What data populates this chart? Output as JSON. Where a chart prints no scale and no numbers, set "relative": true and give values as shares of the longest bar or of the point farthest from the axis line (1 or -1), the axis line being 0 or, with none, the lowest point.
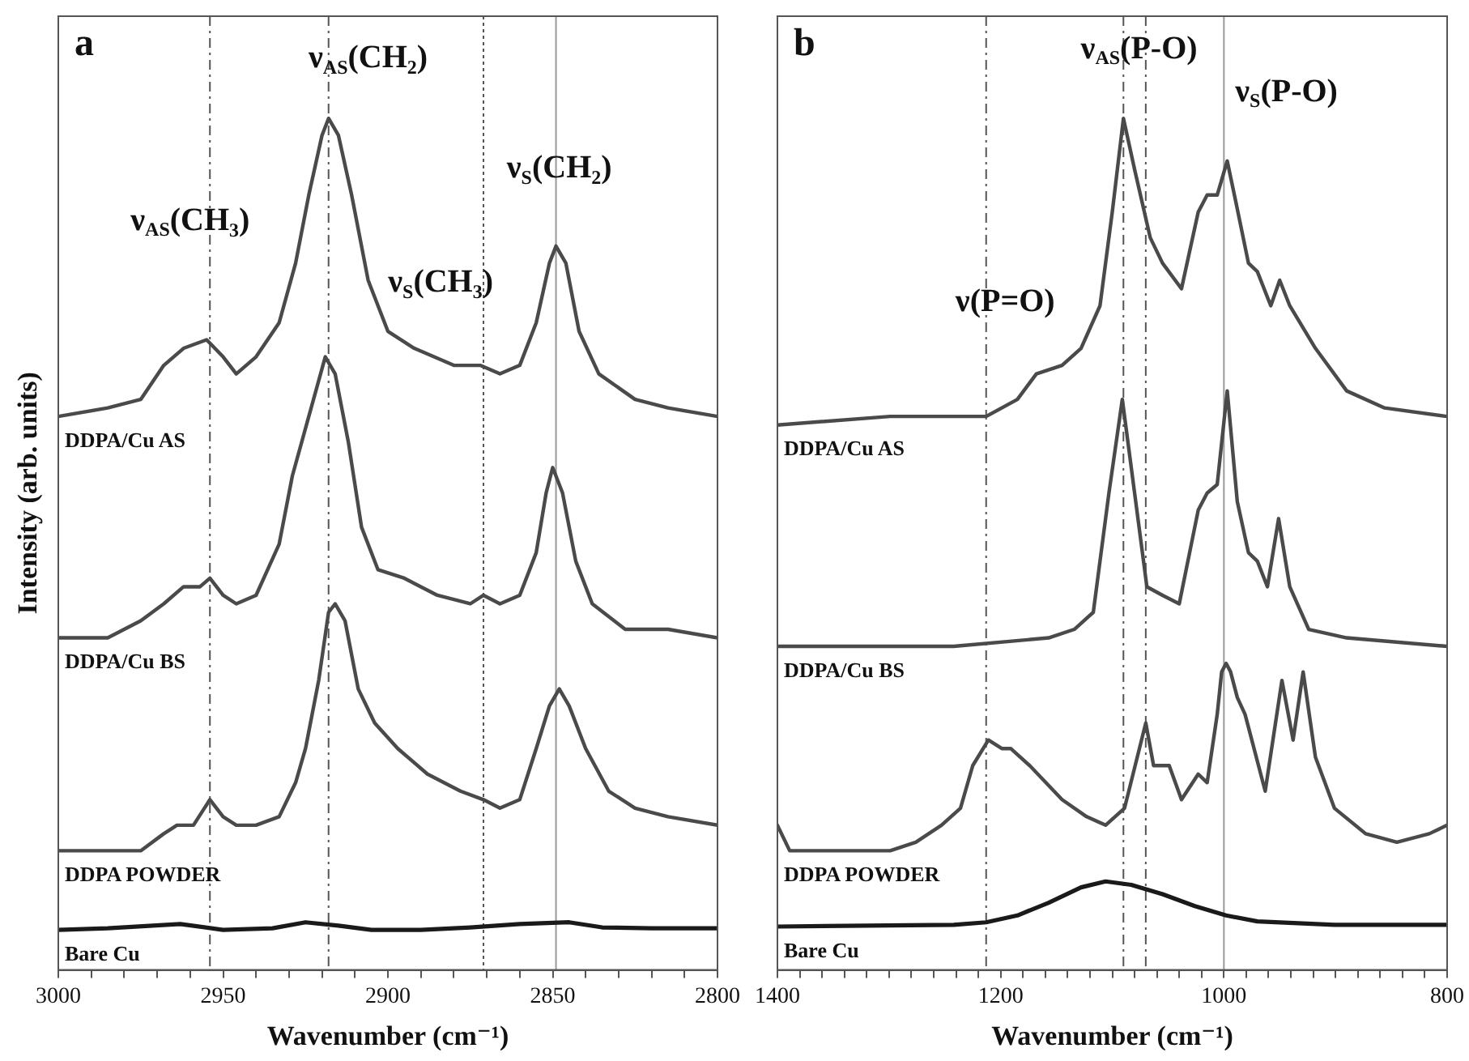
{
  "chart_data": [
    {
      "type": "line",
      "title": "a",
      "xlabel": "Wavenumber (cm⁻¹)",
      "ylabel": "Intensity (arb. units)",
      "relative": true,
      "grid": false,
      "legend": false,
      "marker": "none",
      "line_style": "solid",
      "xlim": [
        3000,
        2800
      ],
      "xticks": [
        3000,
        {
          "value": 2990,
          "label": null
        },
        {
          "value": 2980,
          "label": null
        },
        {
          "value": 2970,
          "label": null
        },
        {
          "value": 2960,
          "label": null
        },
        2950,
        {
          "value": 2940,
          "label": null
        },
        {
          "value": 2930,
          "label": null
        },
        {
          "value": 2920,
          "label": null
        },
        {
          "value": 2910,
          "label": null
        },
        2900,
        {
          "value": 2890,
          "label": null
        },
        {
          "value": 2880,
          "label": null
        },
        {
          "value": 2870,
          "label": null
        },
        {
          "value": 2860,
          "label": null
        },
        2850,
        {
          "value": 2840,
          "label": null
        },
        {
          "value": 2830,
          "label": null
        },
        {
          "value": 2820,
          "label": null
        },
        {
          "value": 2810,
          "label": null
        },
        2800
      ],
      "series": [
        {
          "name": "DDPA/Cu AS",
          "color": "#4a4a4a",
          "x": [
            3000,
            2985,
            2975,
            2968,
            2962,
            2955,
            2950,
            2946,
            2940,
            2933,
            2928,
            2924,
            2920,
            2918,
            2915,
            2911,
            2906,
            2900,
            2892,
            2880,
            2872,
            2866,
            2860,
            2855,
            2851,
            2849,
            2846,
            2842,
            2836,
            2825,
            2815,
            2800
          ],
          "values": [
            0.65,
            0.66,
            0.67,
            0.71,
            0.73,
            0.74,
            0.72,
            0.7,
            0.72,
            0.76,
            0.83,
            0.91,
            0.98,
            1,
            0.98,
            0.91,
            0.81,
            0.75,
            0.73,
            0.71,
            0.71,
            0.7,
            0.71,
            0.76,
            0.83,
            0.85,
            0.83,
            0.75,
            0.7,
            0.67,
            0.66,
            0.65
          ]
        },
        {
          "name": "DDPA/Cu BS",
          "color": "#4a4a4a",
          "x": [
            3000,
            2985,
            2975,
            2968,
            2962,
            2957,
            2954,
            2950,
            2946,
            2940,
            2933,
            2929,
            2924,
            2919,
            2916,
            2912,
            2908,
            2903,
            2895,
            2885,
            2875,
            2871,
            2866,
            2860,
            2855,
            2852,
            2850,
            2847,
            2843,
            2838,
            2828,
            2815,
            2800
          ],
          "values": [
            0.39,
            0.39,
            0.41,
            0.43,
            0.45,
            0.45,
            0.46,
            0.44,
            0.43,
            0.44,
            0.5,
            0.58,
            0.65,
            0.72,
            0.7,
            0.62,
            0.52,
            0.47,
            0.46,
            0.44,
            0.43,
            0.44,
            0.43,
            0.44,
            0.49,
            0.56,
            0.59,
            0.56,
            0.48,
            0.43,
            0.4,
            0.4,
            0.39
          ]
        },
        {
          "name": "DDPA POWDER",
          "color": "#4a4a4a",
          "x": [
            3000,
            2975,
            2968,
            2964,
            2959,
            2954,
            2950,
            2946,
            2940,
            2933,
            2928,
            2925,
            2921,
            2918,
            2916,
            2913,
            2909,
            2904,
            2897,
            2888,
            2878,
            2871,
            2866,
            2860,
            2855,
            2851,
            2848,
            2845,
            2840,
            2833,
            2825,
            2815,
            2800
          ],
          "values": [
            0.14,
            0.14,
            0.16,
            0.17,
            0.17,
            0.2,
            0.18,
            0.17,
            0.17,
            0.18,
            0.22,
            0.26,
            0.34,
            0.42,
            0.43,
            0.41,
            0.33,
            0.29,
            0.26,
            0.23,
            0.21,
            0.2,
            0.19,
            0.2,
            0.26,
            0.31,
            0.33,
            0.31,
            0.26,
            0.21,
            0.19,
            0.18,
            0.17
          ]
        },
        {
          "name": "Bare Cu",
          "color": "#1a1a1a",
          "x": [
            3000,
            2985,
            2963,
            2950,
            2935,
            2925,
            2915,
            2905,
            2890,
            2875,
            2860,
            2845,
            2835,
            2820,
            2800
          ],
          "values": [
            0.047,
            0.049,
            0.054,
            0.047,
            0.049,
            0.056,
            0.052,
            0.047,
            0.047,
            0.05,
            0.054,
            0.056,
            0.05,
            0.049,
            0.049
          ]
        }
      ],
      "ref_lines": [
        {
          "axis": "x",
          "value": 2954,
          "color": "#555555",
          "line_style": "dashed"
        },
        {
          "axis": "x",
          "value": 2918,
          "color": "#555555",
          "line_style": "dashed"
        },
        {
          "axis": "x",
          "value": 2871,
          "color": "#555555",
          "line_style": "dotted"
        },
        {
          "axis": "x",
          "value": 2849,
          "color": "#999999",
          "line_style": "solid"
        }
      ],
      "annotations": [
        "ν$_{AS}$(CH₃)",
        "ν$_{AS}$(CH₂)",
        "ν$_{S}$(CH₃)",
        "ν$_{S}$(CH₂)"
      ]
    },
    {
      "type": "line",
      "title": "b",
      "xlabel": "Wavenumber (cm⁻¹)",
      "relative": true,
      "grid": false,
      "legend": false,
      "marker": "none",
      "line_style": "solid",
      "xlim": [
        1400,
        800
      ],
      "xticks": [
        1400,
        {
          "value": 1380,
          "label": null
        },
        {
          "value": 1360,
          "label": null
        },
        {
          "value": 1340,
          "label": null
        },
        {
          "value": 1320,
          "label": null
        },
        {
          "value": 1300,
          "label": null
        },
        {
          "value": 1280,
          "label": null
        },
        {
          "value": 1260,
          "label": null
        },
        {
          "value": 1240,
          "label": null
        },
        {
          "value": 1220,
          "label": null
        },
        1200,
        {
          "value": 1180,
          "label": null
        },
        {
          "value": 1160,
          "label": null
        },
        {
          "value": 1140,
          "label": null
        },
        {
          "value": 1120,
          "label": null
        },
        {
          "value": 1100,
          "label": null
        },
        {
          "value": 1080,
          "label": null
        },
        {
          "value": 1060,
          "label": null
        },
        {
          "value": 1040,
          "label": null
        },
        {
          "value": 1020,
          "label": null
        },
        1000,
        {
          "value": 980,
          "label": null
        },
        {
          "value": 960,
          "label": null
        },
        {
          "value": 940,
          "label": null
        },
        {
          "value": 920,
          "label": null
        },
        {
          "value": 900,
          "label": null
        },
        {
          "value": 880,
          "label": null
        },
        {
          "value": 860,
          "label": null
        },
        {
          "value": 840,
          "label": null
        },
        {
          "value": 820,
          "label": null
        },
        800
      ],
      "series": [
        {
          "name": "DDPA/Cu AS",
          "color": "#4a4a4a",
          "x": [
            1400,
            1299,
            1213,
            1185,
            1168,
            1145,
            1128,
            1111,
            1100,
            1090,
            1080,
            1066,
            1055,
            1038,
            1023,
            1015,
            1006,
            997,
            989,
            978,
            970,
            958,
            950,
            941,
            918,
            890,
            856,
            800
          ],
          "values": [
            0.64,
            0.65,
            0.65,
            0.67,
            0.7,
            0.71,
            0.73,
            0.78,
            0.89,
            1,
            0.94,
            0.86,
            0.83,
            0.8,
            0.89,
            0.91,
            0.91,
            0.95,
            0.9,
            0.83,
            0.82,
            0.78,
            0.81,
            0.78,
            0.73,
            0.68,
            0.66,
            0.65
          ]
        },
        {
          "name": "DDPA/Cu BS",
          "color": "#4a4a4a",
          "x": [
            1400,
            1242,
            1157,
            1134,
            1117,
            1103,
            1091,
            1080,
            1069,
            1055,
            1040,
            1023,
            1015,
            1006,
            997,
            988,
            978,
            970,
            961,
            951,
            941,
            924,
            890,
            800
          ],
          "values": [
            0.38,
            0.38,
            0.39,
            0.4,
            0.42,
            0.56,
            0.67,
            0.56,
            0.45,
            0.44,
            0.43,
            0.54,
            0.56,
            0.57,
            0.68,
            0.55,
            0.49,
            0.48,
            0.45,
            0.53,
            0.45,
            0.4,
            0.39,
            0.38
          ]
        },
        {
          "name": "DDPA POWDER",
          "color": "#4a4a4a",
          "x": [
            1400,
            1389,
            1355,
            1299,
            1276,
            1253,
            1236,
            1225,
            1211,
            1199,
            1191,
            1174,
            1145,
            1123,
            1106,
            1089,
            1070,
            1063,
            1049,
            1038,
            1023,
            1015,
            1006,
            1002,
            998,
            994,
            988,
            981,
            963,
            948,
            938,
            929,
            918,
            901,
            873,
            845,
            816,
            800
          ],
          "values": [
            0.17,
            0.14,
            0.14,
            0.14,
            0.15,
            0.17,
            0.19,
            0.24,
            0.27,
            0.26,
            0.26,
            0.24,
            0.2,
            0.18,
            0.17,
            0.19,
            0.29,
            0.24,
            0.24,
            0.2,
            0.23,
            0.22,
            0.3,
            0.35,
            0.36,
            0.35,
            0.32,
            0.3,
            0.21,
            0.34,
            0.27,
            0.35,
            0.25,
            0.19,
            0.16,
            0.15,
            0.16,
            0.17
          ]
        },
        {
          "name": "Bare Cu",
          "color": "#1a1a1a",
          "x": [
            1400,
            1242,
            1213,
            1185,
            1157,
            1128,
            1106,
            1083,
            1055,
            1026,
            998,
            970,
            901,
            800
          ],
          "values": [
            0.051,
            0.053,
            0.056,
            0.064,
            0.079,
            0.097,
            0.104,
            0.1,
            0.089,
            0.075,
            0.064,
            0.057,
            0.053,
            0.053
          ]
        }
      ],
      "ref_lines": [
        {
          "axis": "x",
          "value": 1213,
          "color": "#555555",
          "line_style": "dashed"
        },
        {
          "axis": "x",
          "value": 1090,
          "color": "#555555",
          "line_style": "dashed"
        },
        {
          "axis": "x",
          "value": 1070,
          "color": "#555555",
          "line_style": "dashed"
        },
        {
          "axis": "x",
          "value": 1000,
          "color": "#999999",
          "line_style": "solid"
        }
      ],
      "annotations": [
        "ν(P=O)",
        "ν$_{AS}$(P-O)",
        "ν$_{S}$(P-O)"
      ]
    }
  ]
}
